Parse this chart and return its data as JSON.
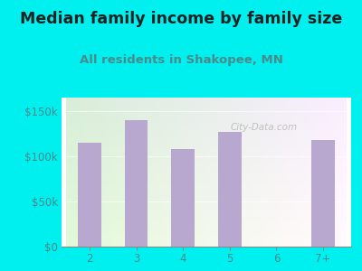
{
  "categories": [
    "2",
    "3",
    "4",
    "5",
    "6",
    "7+"
  ],
  "values": [
    115000,
    140000,
    108000,
    127000,
    0,
    118000
  ],
  "bar_color": "#b8a8d0",
  "title": "Median family income by family size",
  "subtitle": "All residents in Shakopee, MN",
  "title_fontsize": 12.5,
  "subtitle_fontsize": 9.5,
  "title_color": "#222222",
  "subtitle_color": "#4a8a8a",
  "bg_color": "#00f0f0",
  "plot_bg_left": "#d8eed8",
  "plot_bg_right": "#f5f5ff",
  "ylabel_ticks": [
    0,
    50000,
    100000,
    150000
  ],
  "ylabel_labels": [
    "$0",
    "$50k",
    "$100k",
    "$150k"
  ],
  "ylim": [
    0,
    165000
  ],
  "tick_color": "#4a8a8a",
  "tick_fontsize": 8.5,
  "watermark_text": "City-Data.com",
  "watermark_color": "#bbbbbb"
}
